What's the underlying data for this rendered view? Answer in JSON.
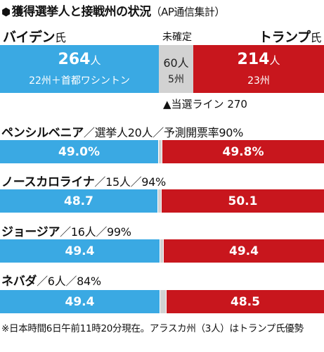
{
  "title": {
    "main": "獲得選挙人と接戦州の状況",
    "source": "（AP通信集計）"
  },
  "candidates": {
    "biden": {
      "name": "バイデン",
      "suffix": "氏",
      "color": "#3aa9e3"
    },
    "trump": {
      "name": "トランプ",
      "suffix": "氏",
      "color": "#c8161d"
    },
    "undecided_label": "未確定"
  },
  "summary": {
    "biden_votes": "264",
    "biden_unit": "人",
    "biden_detail": "22州＋首都ワシントン",
    "undecided_votes": "60人",
    "undecided_detail": "5州",
    "trump_votes": "214",
    "trump_unit": "人",
    "trump_detail": "23州"
  },
  "threshold": {
    "label": "▲当選ライン",
    "value": "270"
  },
  "chart_data": {
    "type": "bar",
    "stacked": true,
    "total_electors": 538,
    "summary": {
      "biden": 264,
      "undecided": 60,
      "trump": 214,
      "win_threshold": 270
    },
    "states": [
      {
        "name": "ペンシルベニア",
        "detail": "／選挙人20人／予測開票率90%",
        "electors": 20,
        "counted_pct": 90,
        "biden": 49.0,
        "trump": 49.8,
        "biden_label": "49.0%",
        "trump_label": "49.8%"
      },
      {
        "name": "ノースカロライナ",
        "detail": "／15人／94%",
        "electors": 15,
        "counted_pct": 94,
        "biden": 48.7,
        "trump": 50.1,
        "biden_label": "48.7",
        "trump_label": "50.1"
      },
      {
        "name": "ジョージア",
        "detail": "／16人／99%",
        "electors": 16,
        "counted_pct": 99,
        "biden": 49.4,
        "trump": 49.4,
        "biden_label": "49.4",
        "trump_label": "49.4"
      },
      {
        "name": "ネバダ",
        "detail": "／6人／84%",
        "electors": 6,
        "counted_pct": 84,
        "biden": 49.4,
        "trump": 48.5,
        "biden_label": "49.4",
        "trump_label": "48.5"
      }
    ]
  },
  "footnote": "※日本時間6日午前11時20分現在。アラスカ州（3人）はトランプ氏優勢"
}
